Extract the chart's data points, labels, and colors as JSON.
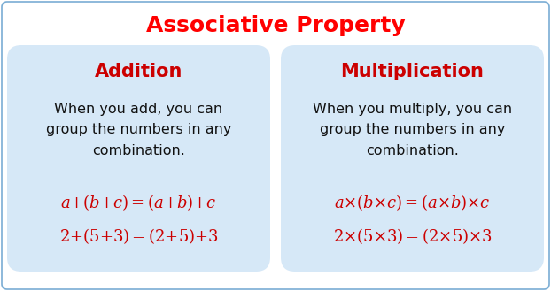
{
  "title": "Associative Property",
  "title_color": "#ff0000",
  "title_fontsize": 18,
  "background_color": "#ffffff",
  "box_bg_color": "#d6e8f7",
  "box_border_color": "#aec6e0",
  "outer_border_color": "#7aadd4",
  "left_header": "Addition",
  "right_header": "Multiplication",
  "header_color": "#cc0000",
  "header_fontsize": 15,
  "left_desc": "When you add, you can\ngroup the numbers in any\ncombination.",
  "right_desc": "When you multiply, you can\ngroup the numbers in any\ncombination.",
  "desc_color": "#111111",
  "desc_fontsize": 11.5,
  "left_eq1": "$a{+}(b{+}c){=}(a{+}b){+}c$",
  "left_eq2": "$2{+}(5{+}3){=}(2{+}5){+}3$",
  "right_eq1": "$a{\\times}(b{\\times}c){=}(a{\\times}b){\\times}c$",
  "right_eq2": "$2{\\times}(5{\\times}3){=}(2{\\times}5){\\times}3$",
  "eq_color": "#cc0000",
  "eq_fontsize": 13
}
